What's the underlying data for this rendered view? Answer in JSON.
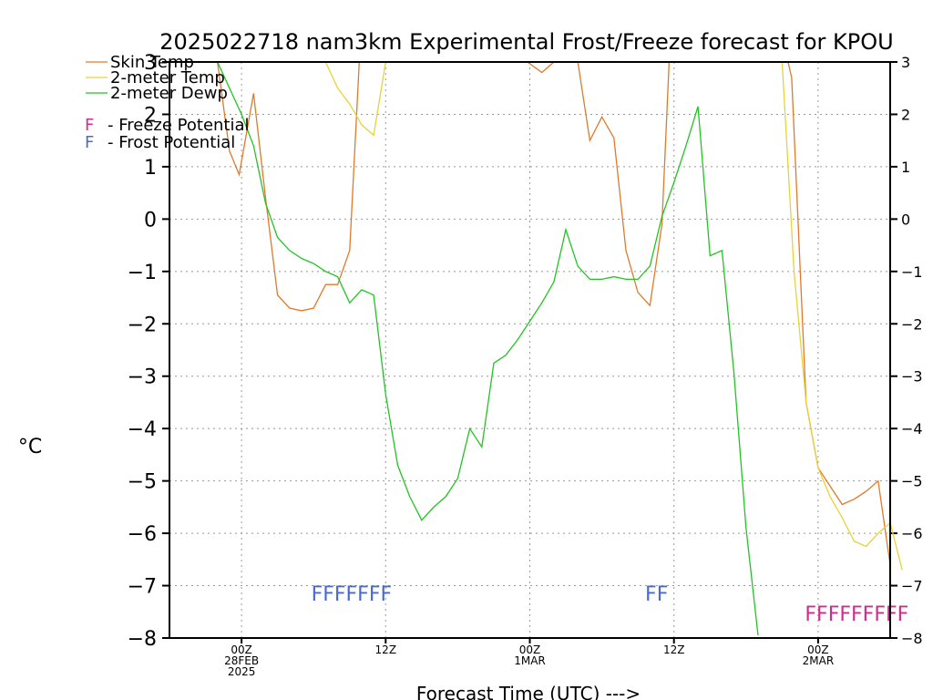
{
  "chart_data": {
    "type": "line",
    "title": "2025022718 nam3km Experimental Frost/Freeze forecast for KPOU",
    "xlabel": "Forecast Time (UTC) --->",
    "ylabel": "°C",
    "ylim": [
      -8,
      3
    ],
    "yticks": [
      "3",
      "2",
      "1",
      "0",
      "−1",
      "−2",
      "−3",
      "−4",
      "−5",
      "−6",
      "−7",
      "−8"
    ],
    "ytick_values": [
      3,
      2,
      1,
      0,
      -1,
      -2,
      -3,
      -4,
      -5,
      -6,
      -7,
      -8
    ],
    "xlim": [
      -6,
      54
    ],
    "grid": true,
    "xticks": [
      {
        "hour": 0,
        "line1": "00Z",
        "line2": "28FEB",
        "line3": "2025"
      },
      {
        "hour": 12,
        "line1": "12Z",
        "line2": "",
        "line3": ""
      },
      {
        "hour": 24,
        "line1": "00Z",
        "line2": "1MAR",
        "line3": ""
      },
      {
        "hour": 36,
        "line1": "12Z",
        "line2": "",
        "line3": ""
      },
      {
        "hour": 48,
        "line1": "00Z",
        "line2": "2MAR",
        "line3": ""
      }
    ],
    "legend": [
      {
        "label": "Skin Temp",
        "color": "#e07a2a"
      },
      {
        "label": "2-meter Temp",
        "color": "#e8d23a"
      },
      {
        "label": "2-meter Dewp",
        "color": "#22c422"
      }
    ],
    "potential_legend": [
      {
        "symbol": "F",
        "label": "- Freeze Potential",
        "color": "#d02c90"
      },
      {
        "symbol": "F",
        "label": "- Frost Potential",
        "color": "#4a6ad0"
      }
    ],
    "series": [
      {
        "name": "Skin Temp",
        "color": "#e07a2a",
        "points": [
          [
            -2,
            3
          ],
          [
            -1,
            1.3
          ],
          [
            -0.2,
            0.85
          ],
          [
            1,
            2.4
          ],
          [
            2,
            0.4
          ],
          [
            3,
            -1.45
          ],
          [
            4,
            -1.7
          ],
          [
            5,
            -1.75
          ],
          [
            6,
            -1.7
          ],
          [
            7,
            -1.25
          ],
          [
            8,
            -1.25
          ],
          [
            9,
            -0.6
          ],
          [
            9.8,
            3
          ],
          [
            23.8,
            3
          ],
          [
            25,
            2.8
          ],
          [
            26,
            3
          ],
          [
            28,
            3
          ],
          [
            29,
            1.5
          ],
          [
            30,
            1.95
          ],
          [
            31,
            1.55
          ],
          [
            32,
            -0.6
          ],
          [
            33,
            -1.4
          ],
          [
            34,
            -1.65
          ],
          [
            35,
            -0.1
          ],
          [
            35.6,
            3
          ],
          [
            45.5,
            3
          ],
          [
            45.8,
            2.7
          ],
          [
            47,
            -3.5
          ],
          [
            48,
            -4.75
          ],
          [
            49,
            -5.1
          ],
          [
            50,
            -5.45
          ],
          [
            51,
            -5.35
          ],
          [
            52,
            -5.2
          ],
          [
            53,
            -5.0
          ],
          [
            54,
            -6.6
          ]
        ]
      },
      {
        "name": "2-meter Temp",
        "color": "#e8d23a",
        "points": [
          [
            -2,
            3
          ],
          [
            7,
            3
          ],
          [
            8,
            2.5
          ],
          [
            9,
            2.2
          ],
          [
            10,
            1.8
          ],
          [
            11,
            1.6
          ],
          [
            12,
            3
          ],
          [
            45,
            3
          ],
          [
            46,
            -1.0
          ],
          [
            47,
            -3.5
          ],
          [
            48,
            -4.75
          ],
          [
            49,
            -5.3
          ],
          [
            50,
            -5.7
          ],
          [
            51,
            -6.15
          ],
          [
            52,
            -6.25
          ],
          [
            53,
            -6.0
          ],
          [
            54,
            -5.8
          ],
          [
            55,
            -6.7
          ]
        ]
      },
      {
        "name": "2-meter Dewp",
        "color": "#22c422",
        "points": [
          [
            -2,
            3
          ],
          [
            -1,
            2.5
          ],
          [
            0,
            2.0
          ],
          [
            1,
            1.4
          ],
          [
            2,
            0.3
          ],
          [
            3,
            -0.35
          ],
          [
            4,
            -0.6
          ],
          [
            5,
            -0.75
          ],
          [
            6,
            -0.85
          ],
          [
            7,
            -1.0
          ],
          [
            8,
            -1.1
          ],
          [
            9,
            -1.6
          ],
          [
            10,
            -1.35
          ],
          [
            11,
            -1.45
          ],
          [
            12,
            -3.35
          ],
          [
            13,
            -4.7
          ],
          [
            14,
            -5.3
          ],
          [
            15,
            -5.75
          ],
          [
            16,
            -5.5
          ],
          [
            17,
            -5.3
          ],
          [
            18,
            -4.95
          ],
          [
            19,
            -4.0
          ],
          [
            20,
            -4.35
          ],
          [
            21,
            -2.75
          ],
          [
            22,
            -2.6
          ],
          [
            23,
            -2.3
          ],
          [
            24,
            -1.95
          ],
          [
            25,
            -1.6
          ],
          [
            26,
            -1.2
          ],
          [
            27,
            -0.2
          ],
          [
            28,
            -0.9
          ],
          [
            29,
            -1.15
          ],
          [
            30,
            -1.15
          ],
          [
            31,
            -1.1
          ],
          [
            32,
            -1.15
          ],
          [
            33,
            -1.15
          ],
          [
            34,
            -0.9
          ],
          [
            35,
            0.05
          ],
          [
            36,
            0.7
          ],
          [
            37,
            1.4
          ],
          [
            38,
            2.15
          ],
          [
            39,
            -0.7
          ],
          [
            40,
            -0.6
          ],
          [
            41,
            -2.95
          ],
          [
            42,
            -5.9
          ],
          [
            43,
            -7.95
          ]
        ]
      }
    ],
    "annotations": [
      {
        "text": "FFFFFFF",
        "kind": "frost",
        "hour_start": 5.8
      },
      {
        "text": "FF",
        "kind": "frost",
        "hour_start": 33.6
      },
      {
        "text": "FFFFFFFFF",
        "kind": "freeze",
        "hour_start": 46.9
      }
    ]
  }
}
